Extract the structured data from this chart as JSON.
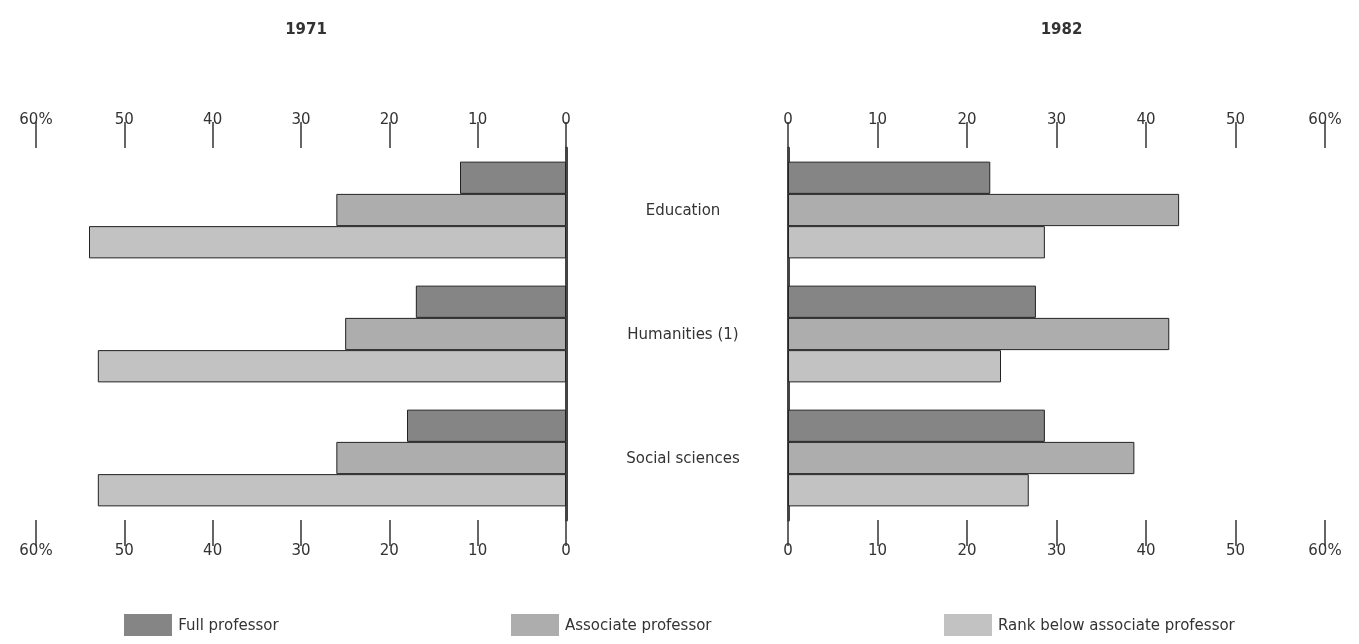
{
  "chart_data": [
    {
      "type": "bar",
      "orientation": "horizontal",
      "title": "1971",
      "categories": [
        "Education",
        "Humanities (1)",
        "Social sciences"
      ],
      "series": [
        {
          "name": "Full professor",
          "color": "#858585",
          "values": [
            12,
            17,
            18
          ]
        },
        {
          "name": "Associate professor",
          "color": "#adadad",
          "values": [
            26,
            25,
            26
          ]
        },
        {
          "name": "Rank below associate professor",
          "color": "#c2c2c2",
          "values": [
            54,
            53,
            53
          ]
        }
      ],
      "xlim": [
        60,
        0
      ],
      "xticks": [
        {
          "value": 60,
          "label": "60%"
        },
        50,
        40,
        30,
        20,
        10,
        0
      ],
      "x2lim": [
        60,
        0
      ],
      "x2ticks": [
        {
          "value": 60,
          "label": "60%"
        },
        50,
        40,
        30,
        20,
        10,
        0
      ],
      "grid": false,
      "legend": "bottom"
    },
    {
      "type": "bar",
      "orientation": "horizontal",
      "title": "1982",
      "categories": [
        null,
        null,
        null
      ],
      "series": [
        {
          "color": "#858585",
          "values": [
            22.6,
            27.7,
            28.7
          ]
        },
        {
          "color": "#adadad",
          "values": [
            43.7,
            42.6,
            38.7
          ]
        },
        {
          "color": "#c2c2c2",
          "values": [
            28.7,
            23.8,
            26.9
          ]
        }
      ],
      "xlim": [
        0,
        60
      ],
      "xticks": [
        0,
        10,
        20,
        30,
        40,
        50,
        {
          "value": 60,
          "label": "60%"
        }
      ],
      "x2lim": [
        0,
        60
      ],
      "x2ticks": [
        0,
        10,
        20,
        30,
        40,
        50,
        {
          "value": 60,
          "label": "60%"
        }
      ],
      "grid": false,
      "tick_labels": "x"
    }
  ]
}
